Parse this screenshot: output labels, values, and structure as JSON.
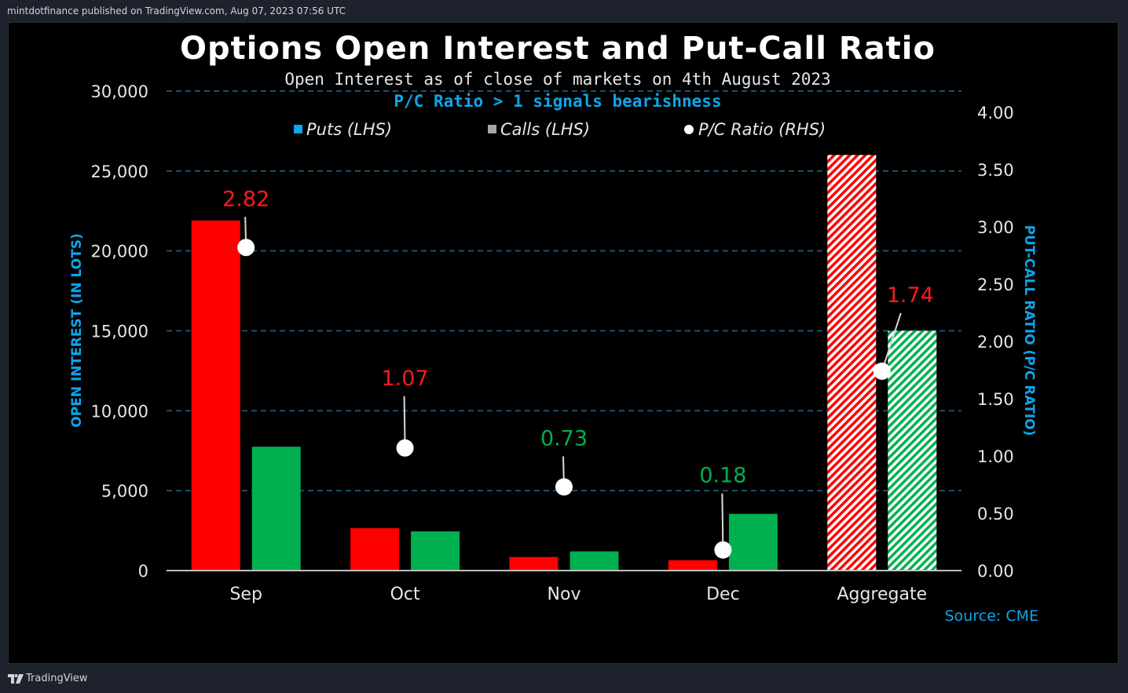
{
  "header": {
    "publish_text": "mintdotfinance published on TradingView.com, Aug 07, 2023 07:56 UTC"
  },
  "footer": {
    "brand": "TradingView"
  },
  "colors": {
    "puts": "#ff0000",
    "calls": "#00b050",
    "grid": "#1f4f6f",
    "axis_title": "#0ea5e9",
    "ratio_bearish": "#ff1a1a",
    "ratio_bullish": "#00b050"
  },
  "chart_data": {
    "type": "bar",
    "title": "Options Open Interest and Put-Call Ratio",
    "subtitle": "Open Interest as of close of markets on 4th August 2023",
    "note": "P/C Ratio > 1 signals bearishness",
    "source": "Source: CME",
    "ylabel": "OPEN INTEREST (IN LOTS)",
    "y2label": "PUT-CALL RATIO (P/C RATIO)",
    "ylim": [
      0,
      30000
    ],
    "y2lim": [
      0,
      4
    ],
    "yticks": [
      "0",
      "5,000",
      "10,000",
      "15,000",
      "20,000",
      "25,000",
      "30,000"
    ],
    "y2ticks": [
      "0.00",
      "0.50",
      "1.00",
      "1.50",
      "2.00",
      "2.50",
      "3.00",
      "3.50",
      "4.00"
    ],
    "grid": true,
    "legend_position": "top",
    "categories": [
      "Sep",
      "Oct",
      "Nov",
      "Dec",
      "Aggregate"
    ],
    "hatched_categories": [
      "Aggregate"
    ],
    "series": [
      {
        "name": "Puts (LHS)",
        "axis": "left",
        "values": [
          21900,
          2650,
          850,
          650,
          26000
        ]
      },
      {
        "name": "Calls (LHS)",
        "axis": "left",
        "values": [
          7750,
          2450,
          1200,
          3550,
          15000
        ]
      },
      {
        "name": "P/C Ratio (RHS)",
        "axis": "right",
        "values": [
          2.82,
          1.07,
          0.73,
          0.18,
          1.74
        ],
        "labels": [
          "2.82",
          "1.07",
          "0.73",
          "0.18",
          "1.74"
        ]
      }
    ]
  }
}
